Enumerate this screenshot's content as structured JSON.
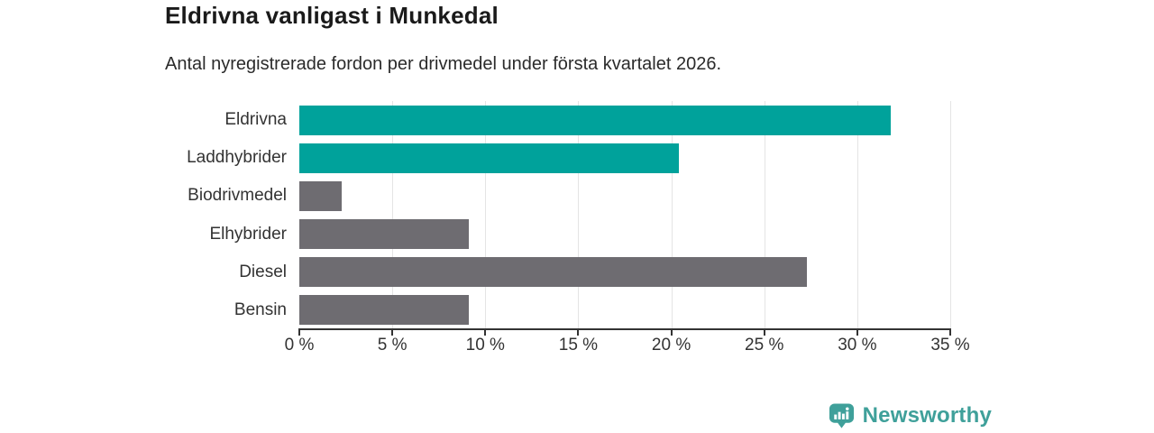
{
  "title": "Eldrivna vanligast i Munkedal",
  "subtitle": "Antal nyregistrerade fordon per drivmedel under första kvartalet 2026.",
  "branding": {
    "logo_text": "Newsworthy",
    "logo_icon": "bar-chart-speech-bubble-icon",
    "logo_color": "#3fa09a"
  },
  "colors": {
    "highlight_bar": "#00a29b",
    "default_bar": "#6e6c71",
    "gridline": "#e4e4e4",
    "axis": "#333333",
    "title_text": "#1a1a1a",
    "body_text": "#333333"
  },
  "chart_data": {
    "type": "bar",
    "orientation": "horizontal",
    "title": "Eldrivna vanligast i Munkedal",
    "subtitle": "Antal nyregistrerade fordon per drivmedel under första kvartalet 2026.",
    "categories": [
      "Eldrivna",
      "Laddhybrider",
      "Biodrivmedel",
      "Elhybrider",
      "Diesel",
      "Bensin"
    ],
    "values": [
      31.8,
      20.4,
      2.3,
      9.1,
      27.3,
      9.1
    ],
    "unit": "%",
    "bar_colors": [
      "#00a29b",
      "#00a29b",
      "#6e6c71",
      "#6e6c71",
      "#6e6c71",
      "#6e6c71"
    ],
    "xlim": [
      0,
      35
    ],
    "x_ticks": [
      0,
      5,
      10,
      15,
      20,
      25,
      30,
      35
    ],
    "x_tick_labels": [
      "0 %",
      "5 %",
      "10 %",
      "15 %",
      "20 %",
      "25 %",
      "30 %",
      "35 %"
    ],
    "grid": "vertical-only",
    "legend": "none"
  }
}
